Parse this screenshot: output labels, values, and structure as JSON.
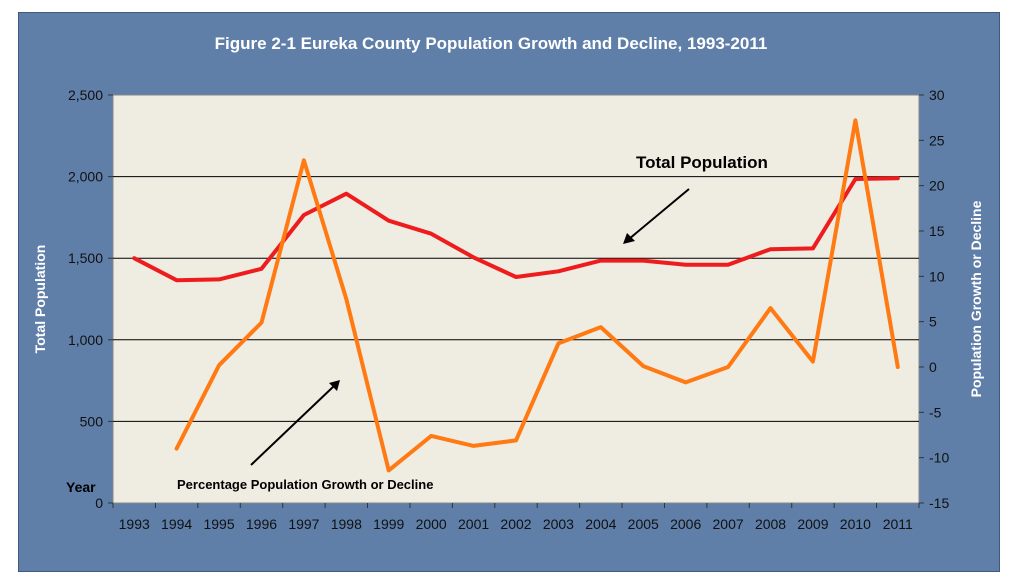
{
  "chart_data": {
    "type": "line",
    "title": "Figure 2-1 Eureka County Population Growth and Decline, 1993-2011",
    "xlabel": "Year",
    "ylabel": "Total Population",
    "y2label": "Population Growth or Decline",
    "categories": [
      "1993",
      "1994",
      "1995",
      "1996",
      "1997",
      "1998",
      "1999",
      "2000",
      "2001",
      "2002",
      "2003",
      "2004",
      "2005",
      "2006",
      "2007",
      "2008",
      "2009",
      "2010",
      "2011"
    ],
    "ylim": [
      0,
      2500
    ],
    "yticks": [
      "0",
      "500",
      "1,000",
      "1,500",
      "2,000",
      "2,500"
    ],
    "y2lim": [
      -15,
      30
    ],
    "y2ticks": [
      "-15",
      "-10",
      "-5",
      "0",
      "5",
      "10",
      "15",
      "20",
      "25",
      "30"
    ],
    "grid": true,
    "series": [
      {
        "name": "Total Population",
        "axis": "left",
        "color": "#ee1c1c",
        "values": [
          1500,
          1365,
          1370,
          1435,
          1765,
          1895,
          1730,
          1650,
          1505,
          1385,
          1420,
          1485,
          1485,
          1460,
          1460,
          1555,
          1560,
          1985,
          1990
        ]
      },
      {
        "name": "Percentage Population Growth or Decline",
        "axis": "right",
        "color": "#ff7a12",
        "values": [
          null,
          -9.0,
          0.2,
          4.9,
          22.8,
          7.5,
          -11.4,
          -7.6,
          -8.7,
          -8.1,
          2.6,
          4.4,
          0.1,
          -1.7,
          0.0,
          6.5,
          0.6,
          27.2,
          0.0
        ]
      }
    ],
    "annotations": [
      "Total Population",
      "Percentage Population Growth or Decline"
    ]
  },
  "colors": {
    "frame_background": "#5f7fa9",
    "plot_background": "#efece2"
  }
}
